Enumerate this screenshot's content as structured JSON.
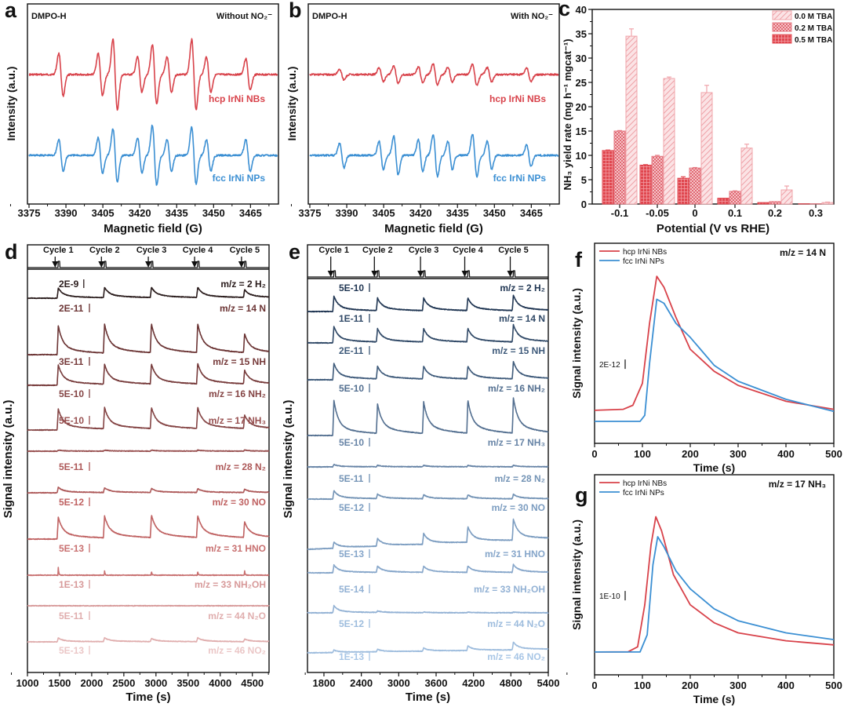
{
  "panel_letters": [
    "a",
    "b",
    "c",
    "d",
    "e",
    "f",
    "g"
  ],
  "chart_data": [
    {
      "id": "a",
      "type": "line",
      "annotations": {
        "left": "DMPO-H",
        "right": "Without NO₂⁻"
      },
      "xlabel": "Magnetic field (G)",
      "ylabel": "Intensity (a.u.)",
      "xlim": [
        3375,
        3477
      ],
      "xticks": [
        3375,
        3390,
        3405,
        3420,
        3435,
        3450,
        3465
      ],
      "line_positions_G": [
        3388,
        3404,
        3410,
        3420,
        3426,
        3432,
        3442,
        3448,
        3464
      ],
      "series": [
        {
          "name": "hcp IrNi NBs",
          "color": "#d8424a",
          "amplitudes": [
            0.6,
            0.6,
            1.0,
            0.5,
            0.85,
            0.5,
            1.0,
            0.5,
            0.45
          ]
        },
        {
          "name": "fcc IrNi NPs",
          "color": "#3b8fd3",
          "amplitudes": [
            0.45,
            0.5,
            0.75,
            0.5,
            0.85,
            0.45,
            0.8,
            0.45,
            0.45
          ]
        }
      ]
    },
    {
      "id": "b",
      "type": "line",
      "annotations": {
        "left": "DMPO-H",
        "right": "With NO₂⁻"
      },
      "xlabel": "Magnetic field (G)",
      "ylabel": "Intensity (a.u.)",
      "xlim": [
        3375,
        3477
      ],
      "xticks": [
        3375,
        3390,
        3405,
        3420,
        3435,
        3450,
        3465
      ],
      "line_positions_G": [
        3388,
        3404,
        3410,
        3420,
        3426,
        3432,
        3442,
        3448,
        3464
      ],
      "series": [
        {
          "name": "hcp IrNi NBs",
          "color": "#d8424a",
          "amplitudes": [
            0.15,
            0.2,
            0.25,
            0.22,
            0.3,
            0.22,
            0.3,
            0.2,
            0.2
          ]
        },
        {
          "name": "fcc IrNi NPs",
          "color": "#3b8fd3",
          "amplitudes": [
            0.35,
            0.4,
            0.55,
            0.45,
            0.6,
            0.4,
            0.6,
            0.4,
            0.3
          ]
        }
      ]
    },
    {
      "id": "c",
      "type": "bar",
      "xlabel": "Potential (V vs RHE)",
      "ylabel": "NH₃ yield rate (mg h⁻¹ mgcat⁻¹)",
      "ylim": [
        0,
        40
      ],
      "yticks": [
        0,
        5,
        10,
        15,
        20,
        25,
        30,
        35,
        40
      ],
      "categories": [
        "-0.1",
        "-0.05",
        "0",
        "0.1",
        "0.2",
        "0.3"
      ],
      "legend_position": "top-right",
      "series": [
        {
          "name": "0.5 M TBA",
          "pattern": "grid",
          "color": "#e0474f",
          "values": [
            11.0,
            8.0,
            5.3,
            1.2,
            0.3,
            0.05
          ],
          "errors": [
            0.1,
            0.1,
            0.3,
            0.05,
            0.05,
            0.02
          ]
        },
        {
          "name": "0.2 M TBA",
          "pattern": "checker",
          "color": "#e57a83",
          "values": [
            15.0,
            9.8,
            7.4,
            2.6,
            0.5,
            0.05
          ],
          "errors": [
            0.1,
            0.2,
            0.1,
            0.1,
            0.05,
            0.02
          ]
        },
        {
          "name": "0.0 M TBA",
          "pattern": "hatch",
          "color": "#f0a4aa",
          "values": [
            34.5,
            25.8,
            22.9,
            11.5,
            2.9,
            0.3
          ],
          "errors": [
            1.5,
            0.3,
            1.5,
            0.8,
            0.8,
            0.1
          ]
        }
      ]
    },
    {
      "id": "d",
      "type": "line",
      "xlabel": "Time (s)",
      "ylabel": "Signal intensity (a.u.)",
      "xlim": [
        1000,
        4760
      ],
      "xticks": [
        1000,
        1500,
        2000,
        2500,
        3000,
        3500,
        4000,
        4500
      ],
      "cycles": [
        "Cycle 1",
        "Cycle 2",
        "Cycle 3",
        "Cycle 4",
        "Cycle 5"
      ],
      "cycle_times_s": [
        1480,
        2200,
        2930,
        3650,
        4380
      ],
      "series": [
        {
          "label": "m/z = 2 H₂",
          "scale": "2E-9",
          "color": "#2a1c1c",
          "peaks": [
            0.29,
            0.29,
            0.29,
            0.29,
            0.22
          ]
        },
        {
          "label": "m/z = 14 N",
          "scale": "2E-11",
          "color": "#6b3434",
          "peaks": [
            0.82,
            0.82,
            0.82,
            0.82,
            0.53
          ]
        },
        {
          "label": "m/z = 15 NH",
          "scale": "3E-11",
          "color": "#763a3a",
          "peaks": [
            0.58,
            0.56,
            0.56,
            0.58,
            0.38
          ]
        },
        {
          "label": "m/z = 16 NH₂",
          "scale": "5E-10",
          "color": "#844444",
          "peaks": [
            0.6,
            0.6,
            0.6,
            0.6,
            0.38
          ]
        },
        {
          "label": "m/z = 17 NH₃",
          "scale": "5E-10",
          "color": "#985050",
          "peaks": [
            0.03,
            0.03,
            0.03,
            0.03,
            0.03
          ]
        },
        {
          "label": "m/z = 28 N₂",
          "scale": "5E-11",
          "color": "#ad5858",
          "peaks": [
            0.16,
            0.13,
            0.11,
            0.11,
            0.09
          ]
        },
        {
          "label": "m/z = 30 NO",
          "scale": "5E-12",
          "color": "#bf6161",
          "peaks": [
            0.62,
            0.62,
            0.64,
            0.62,
            0.44
          ]
        },
        {
          "label": "m/z = 31 HNO",
          "scale": "5E-13",
          "color": "#c87070",
          "peaks": [
            0.22,
            0.13,
            0.11,
            0.11,
            0.13
          ]
        },
        {
          "label": "m/z = 33 NH₂OH",
          "scale": "1E-13",
          "color": "#d79999",
          "peaks": [
            0,
            0,
            0,
            0,
            0
          ]
        },
        {
          "label": "m/z = 44 N₂O",
          "scale": "5E-11",
          "color": "#e0aeae",
          "peaks": [
            0.11,
            0.11,
            0.09,
            0.11,
            0.07
          ]
        },
        {
          "label": "m/z = 46 NO₂",
          "scale": "5E-13",
          "color": "#ebc7c7",
          "peaks": null
        }
      ]
    },
    {
      "id": "e",
      "type": "line",
      "xlabel": "Time (s)",
      "ylabel": "Signal intensity (a.u.)",
      "xlim": [
        1536,
        5400
      ],
      "xticks": [
        1800,
        2400,
        3000,
        3600,
        4200,
        4800,
        5400
      ],
      "cycles": [
        "Cycle 1",
        "Cycle 2",
        "Cycle 3",
        "Cycle 4",
        "Cycle 5"
      ],
      "cycle_times_s": [
        1960,
        2660,
        3400,
        4110,
        4840
      ],
      "series": [
        {
          "label": "m/z = 2 H₂",
          "scale": "5E-10",
          "color": "#1f3552",
          "peaks": [
            0.44,
            0.36,
            0.36,
            0.36,
            0.44
          ]
        },
        {
          "label": "m/z = 14 N",
          "scale": "1E-11",
          "color": "#2f4866",
          "peaks": [
            0.47,
            0.38,
            0.38,
            0.38,
            0.49
          ]
        },
        {
          "label": "m/z = 15 NH",
          "scale": "2E-11",
          "color": "#3e5a7a",
          "peaks": [
            0.47,
            0.36,
            0.36,
            0.36,
            0.49
          ]
        },
        {
          "label": "m/z = 16 NH₂",
          "scale": "5E-10",
          "color": "#536f90",
          "peaks": [
            1.0,
            0.84,
            0.89,
            0.93,
            1.0
          ]
        },
        {
          "label": "m/z = 17 NH₃",
          "scale": "5E-10",
          "color": "#6784a6",
          "peaks": [
            0.07,
            0.04,
            0.04,
            0.04,
            0.04
          ]
        },
        {
          "label": "m/z = 28 N₂",
          "scale": "5E-11",
          "color": "#7393b5",
          "peaks": [
            0.24,
            0.13,
            0.11,
            0.11,
            0.13
          ]
        },
        {
          "label": "m/z = 30 NO",
          "scale": "5E-12",
          "color": "#7b9cc0",
          "peaks": [
            0.18,
            0.22,
            0.31,
            0.44,
            0.6
          ]
        },
        {
          "label": "m/z = 31 HNO",
          "scale": "5E-13",
          "color": "#86a6ca",
          "peaks": [
            0.22,
            0.18,
            0.18,
            0.18,
            0.22
          ]
        },
        {
          "label": "m/z = 33 NH₂OH",
          "scale": "5E-14",
          "color": "#92b1d4",
          "peaks": [
            0.2,
            0.04,
            0.02,
            0.02,
            0.02
          ]
        },
        {
          "label": "m/z = 44 N₂O",
          "scale": "5E-12",
          "color": "#9dbcdd",
          "peaks": [
            0.07,
            0.07,
            0.09,
            0.13,
            0.22
          ]
        },
        {
          "label": "m/z = 46 NO₂",
          "scale": "1E-13",
          "color": "#a8c6e6",
          "peaks": null
        }
      ]
    },
    {
      "id": "f",
      "type": "line",
      "annotation": "m/z = 14 N",
      "scale": "2E-12",
      "xlabel": "Time (s)",
      "ylabel": "Signal intensity (a.u.)",
      "xlim": [
        0,
        500
      ],
      "ylim": [
        0,
        1
      ],
      "xticks": [
        0,
        100,
        200,
        300,
        400,
        500
      ],
      "legend_position": "top-left",
      "series": [
        {
          "name": "hcp IrNi NBs",
          "color": "#d8424a",
          "x": [
            0,
            60,
            80,
            100,
            115,
            130,
            145,
            170,
            200,
            250,
            300,
            400,
            500
          ],
          "y": [
            0.165,
            0.17,
            0.19,
            0.3,
            0.6,
            0.835,
            0.78,
            0.63,
            0.47,
            0.36,
            0.29,
            0.21,
            0.17
          ]
        },
        {
          "name": "fcc IrNi NPs",
          "color": "#3b8fd3",
          "x": [
            0,
            95,
            105,
            115,
            130,
            145,
            170,
            200,
            250,
            300,
            400,
            500
          ],
          "y": [
            0.11,
            0.11,
            0.14,
            0.4,
            0.72,
            0.7,
            0.6,
            0.53,
            0.39,
            0.31,
            0.22,
            0.16
          ]
        }
      ]
    },
    {
      "id": "g",
      "type": "line",
      "annotation": "m/z = 17 NH₃",
      "scale": "1E-10",
      "xlabel": "Time (s)",
      "ylabel": "Signal intensity (a.u.)",
      "xlim": [
        0,
        500
      ],
      "ylim": [
        0,
        1
      ],
      "xticks": [
        0,
        100,
        200,
        300,
        400,
        500
      ],
      "legend_position": "top-left",
      "series": [
        {
          "name": "hcp IrNi NBs",
          "color": "#d8424a",
          "x": [
            0,
            70,
            90,
            105,
            118,
            128,
            140,
            165,
            200,
            250,
            300,
            400,
            500
          ],
          "y": [
            0.114,
            0.115,
            0.14,
            0.35,
            0.65,
            0.79,
            0.72,
            0.5,
            0.35,
            0.26,
            0.21,
            0.17,
            0.15
          ]
        },
        {
          "name": "fcc IrNi NPs",
          "color": "#3b8fd3",
          "x": [
            0,
            95,
            110,
            122,
            132,
            145,
            170,
            200,
            250,
            300,
            400,
            500
          ],
          "y": [
            0.114,
            0.114,
            0.2,
            0.55,
            0.69,
            0.64,
            0.52,
            0.43,
            0.33,
            0.27,
            0.21,
            0.176
          ]
        }
      ]
    }
  ]
}
